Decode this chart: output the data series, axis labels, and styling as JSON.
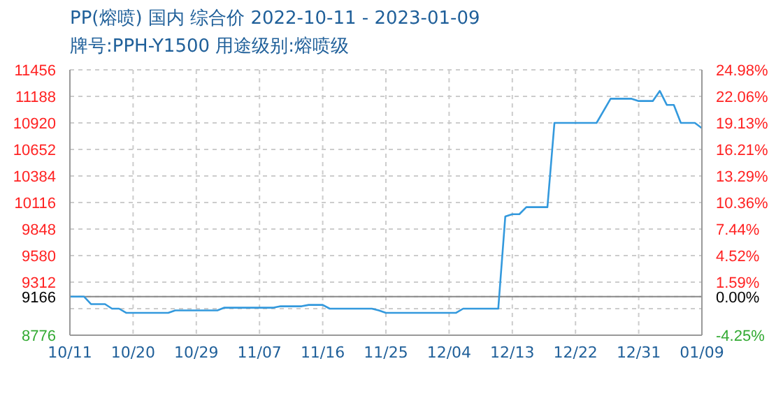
{
  "chart_data": {
    "type": "line",
    "title": "PP(熔喷) 国内 综合价 2022-10-11 - 2023-01-09",
    "subtitle": "牌号:PPH-Y1500 用途级别:熔喷级",
    "x": [
      "2022-10-11",
      "2022-10-13",
      "2022-10-14",
      "2022-10-16",
      "2022-10-17",
      "2022-10-18",
      "2022-10-19",
      "2022-10-25",
      "2022-10-26",
      "2022-11-01",
      "2022-11-02",
      "2022-11-09",
      "2022-11-10",
      "2022-11-13",
      "2022-11-14",
      "2022-11-16",
      "2022-11-17",
      "2022-11-23",
      "2022-11-24",
      "2022-11-25",
      "2022-12-05",
      "2022-12-06",
      "2022-12-11",
      "2022-12-12",
      "2022-12-13",
      "2022-12-14",
      "2022-12-15",
      "2022-12-18",
      "2022-12-19",
      "2022-12-25",
      "2022-12-27",
      "2022-12-30",
      "2022-12-31",
      "2023-01-02",
      "2023-01-03",
      "2023-01-04",
      "2023-01-05",
      "2023-01-06",
      "2023-01-08",
      "2023-01-09"
    ],
    "series": [
      {
        "color": "#3399dd",
        "values": [
          9166,
          9166,
          9090,
          9090,
          9044,
          9044,
          9002,
          9002,
          9026,
          9026,
          9054,
          9054,
          9068,
          9068,
          9082,
          9082,
          9044,
          9044,
          9026,
          9002,
          9002,
          9044,
          9044,
          9975,
          9998,
          9998,
          10069,
          10069,
          10920,
          10920,
          11164,
          11164,
          11141,
          11141,
          11243,
          11102,
          11102,
          10920,
          10920,
          10867
        ]
      }
    ],
    "xlim": [
      "2022-10-11",
      "2023-01-09"
    ],
    "xticks": [
      {
        "value": "2022-10-11",
        "label": "10/11"
      },
      {
        "value": "2022-10-20",
        "label": "10/20"
      },
      {
        "value": "2022-10-29",
        "label": "10/29"
      },
      {
        "value": "2022-11-07",
        "label": "11/07"
      },
      {
        "value": "2022-11-16",
        "label": "11/16"
      },
      {
        "value": "2022-11-25",
        "label": "11/25"
      },
      {
        "value": "2022-12-04",
        "label": "12/04"
      },
      {
        "value": "2022-12-13",
        "label": "12/13"
      },
      {
        "value": "2022-12-22",
        "label": "12/22"
      },
      {
        "value": "2022-12-31",
        "label": "12/31"
      },
      {
        "value": "2023-01-09",
        "label": "01/09"
      }
    ],
    "ylim": [
      8776,
      11456
    ],
    "yticks": [
      8776,
      {
        "value": 9044,
        "label": null
      },
      9166,
      9312,
      9580,
      9848,
      10116,
      10384,
      10652,
      10920,
      11188,
      11456
    ],
    "y2lim": [
      -4.25,
      24.98
    ],
    "y2ticks": [
      {
        "value": -4.25,
        "label": "-4.25%"
      },
      {
        "value": -1.33,
        "label": null
      },
      {
        "value": 0,
        "label": "0.00%"
      },
      {
        "value": 1.59,
        "label": "1.59%"
      },
      {
        "value": 4.52,
        "label": "4.52%"
      },
      {
        "value": 7.44,
        "label": "7.44%"
      },
      {
        "value": 10.36,
        "label": "10.36%"
      },
      {
        "value": 13.29,
        "label": "13.29%"
      },
      {
        "value": 16.21,
        "label": "16.21%"
      },
      {
        "value": 19.13,
        "label": "19.13%"
      },
      {
        "value": 22.06,
        "label": "22.06%"
      },
      {
        "value": 24.98,
        "label": "24.98%"
      }
    ],
    "ref_lines": [
      {
        "axis": "y",
        "value": 9166,
        "color": "#888888"
      }
    ],
    "grid": true,
    "marker": "none",
    "line_style": "solid"
  }
}
